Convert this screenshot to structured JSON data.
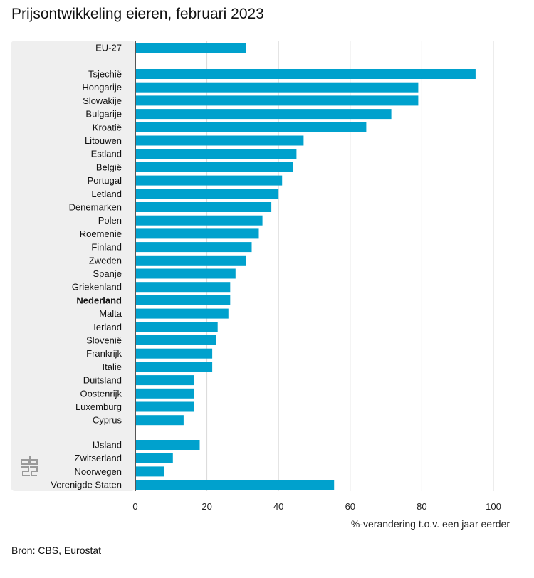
{
  "title": "Prijsontwikkeling eieren, februari 2023",
  "source": "Bron: CBS, Eurostat",
  "chart_data": {
    "type": "bar",
    "orientation": "horizontal",
    "xlabel": "%-verandering t.o.v. een jaar eerder",
    "xlim": [
      0,
      100
    ],
    "xticks": [
      0,
      20,
      40,
      60,
      80,
      100
    ],
    "grid": true,
    "bar_color": "#00a1cd",
    "panel_color": "#efefef",
    "groups": [
      {
        "categories": [
          "EU-27"
        ],
        "values": [
          31
        ]
      },
      {
        "categories": [
          "Tsjechië",
          "Hongarije",
          "Slowakije",
          "Bulgarije",
          "Kroatië",
          "Litouwen",
          "Estland",
          "België",
          "Portugal",
          "Letland",
          "Denemarken",
          "Polen",
          "Roemenië",
          "Finland",
          "Zweden",
          "Spanje",
          "Griekenland",
          "Nederland",
          "Malta",
          "Ierland",
          "Slovenië",
          "Frankrijk",
          "Italië",
          "Duitsland",
          "Oostenrijk",
          "Luxemburg",
          "Cyprus"
        ],
        "values": [
          95,
          79,
          79,
          71.5,
          64.5,
          47,
          45,
          44,
          41,
          40,
          38,
          35.5,
          34.5,
          32.5,
          31,
          28,
          26.5,
          26.5,
          26,
          23,
          22.5,
          21.5,
          21.5,
          16.5,
          16.5,
          16.5,
          13.5
        ]
      },
      {
        "categories": [
          "IJsland",
          "Zwitserland",
          "Noorwegen",
          "Verenigde Staten"
        ],
        "values": [
          18,
          10.5,
          8,
          55.5
        ]
      }
    ],
    "highlight": "Nederland"
  }
}
